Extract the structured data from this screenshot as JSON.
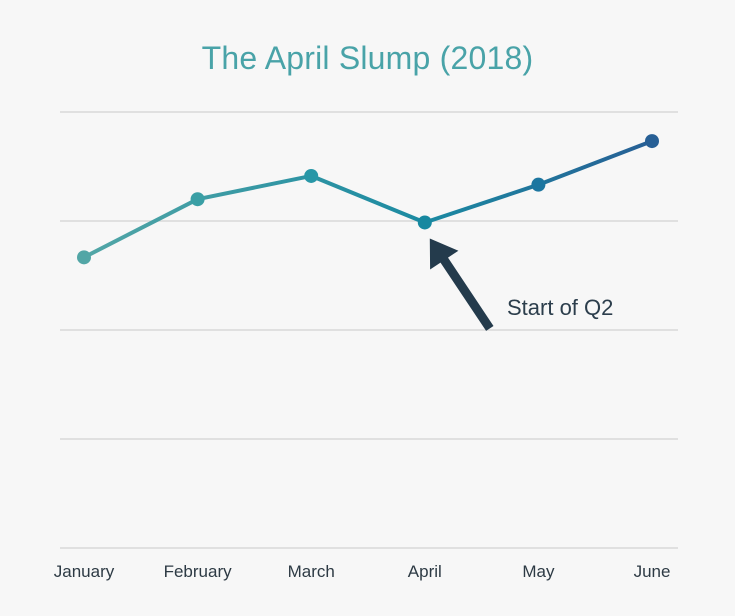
{
  "chart_data": {
    "type": "line",
    "title": "The April Slump (2018)",
    "categories": [
      "January",
      "February",
      "March",
      "April",
      "May",
      "June"
    ],
    "values": [
      40,
      60,
      68,
      52,
      65,
      80
    ],
    "ylim": [
      -60,
      90
    ],
    "grid": true,
    "annotation": {
      "text": "Start of Q2",
      "target_category": "April"
    },
    "colors": [
      "#52a6a6",
      "#3a9fa5",
      "#2897a7",
      "#1788a0",
      "#1c76a0",
      "#275f95"
    ],
    "annotation_color": "#243b4c"
  }
}
